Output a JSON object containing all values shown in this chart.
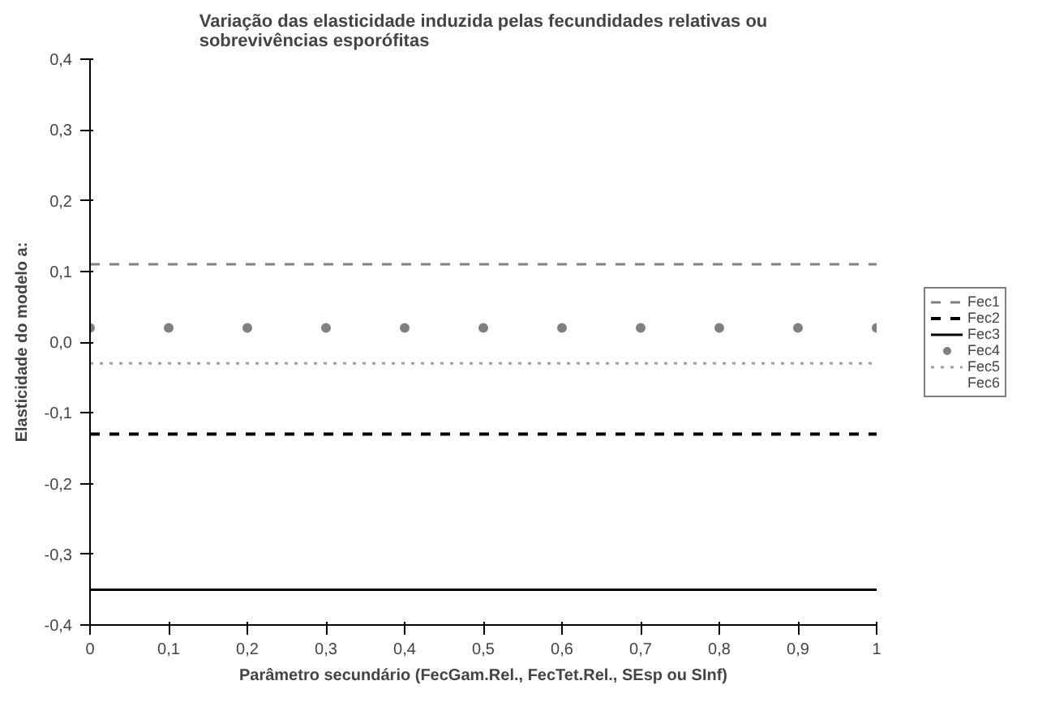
{
  "chart_data": {
    "type": "line",
    "title": "Variação das elasticidade induzida pelas fecundidades relativas ou sobrevivências esporófitas",
    "xlabel": "Parâmetro secundário (FecGam.Rel., FecTet.Rel., SEsp ou SInf)",
    "ylabel": "Elasticidade do modelo a:",
    "x": [
      0,
      0.1,
      0.2,
      0.3,
      0.4,
      0.5,
      0.6,
      0.7,
      0.8,
      0.9,
      1
    ],
    "xlim": [
      0,
      1
    ],
    "xticks": [
      {
        "value": 0,
        "label": "0"
      },
      {
        "value": 0.1,
        "label": "0,1"
      },
      {
        "value": 0.2,
        "label": "0,2"
      },
      {
        "value": 0.3,
        "label": "0,3"
      },
      {
        "value": 0.4,
        "label": "0,4"
      },
      {
        "value": 0.5,
        "label": "0,5"
      },
      {
        "value": 0.6,
        "label": "0,6"
      },
      {
        "value": 0.7,
        "label": "0,7"
      },
      {
        "value": 0.8,
        "label": "0,8"
      },
      {
        "value": 0.9,
        "label": "0,9"
      },
      {
        "value": 1,
        "label": "1"
      }
    ],
    "ylim": [
      -0.4,
      0.4
    ],
    "yticks": [
      {
        "value": -0.4,
        "label": "-0,4"
      },
      {
        "value": -0.3,
        "label": "-0,3"
      },
      {
        "value": -0.2,
        "label": "-0,2"
      },
      {
        "value": -0.1,
        "label": "-0,1"
      },
      {
        "value": 0,
        "label": "0,0"
      },
      {
        "value": 0.1,
        "label": "0,1"
      },
      {
        "value": 0.2,
        "label": "0,2"
      },
      {
        "value": 0.3,
        "label": "0,3"
      },
      {
        "value": 0.4,
        "label": "0,4"
      }
    ],
    "grid": false,
    "legend": "right",
    "series": [
      {
        "name": "Fec1",
        "color": "#808080",
        "line_style": "dashed",
        "values": [
          0.11,
          0.11,
          0.11,
          0.11,
          0.11,
          0.11,
          0.11,
          0.11,
          0.11,
          0.11,
          0.11
        ]
      },
      {
        "name": "Fec2",
        "color": "#000000",
        "line_style": "dashed",
        "values": [
          -0.13,
          -0.13,
          -0.13,
          -0.13,
          -0.13,
          -0.13,
          -0.13,
          -0.13,
          -0.13,
          -0.13,
          -0.13
        ]
      },
      {
        "name": "Fec3",
        "color": "#000000",
        "line_style": "solid",
        "values": [
          -0.35,
          -0.35,
          -0.35,
          -0.35,
          -0.35,
          -0.35,
          -0.35,
          -0.35,
          -0.35,
          -0.35,
          -0.35
        ]
      },
      {
        "name": "Fec4",
        "type": "scatter",
        "color": "#808080",
        "marker": "circle",
        "values": [
          0.02,
          0.02,
          0.02,
          0.02,
          0.02,
          0.02,
          0.02,
          0.02,
          0.02,
          0.02,
          0.02
        ]
      },
      {
        "name": "Fec5",
        "color": "#a0a0a0",
        "line_style": "dotted",
        "values": [
          -0.03,
          -0.03,
          -0.03,
          -0.03,
          -0.03,
          -0.03,
          -0.03,
          -0.03,
          -0.03,
          -0.03,
          -0.03
        ]
      },
      {
        "name": "Fec6",
        "line_style": "solid",
        "values": [
          null,
          null,
          null,
          null,
          null,
          null,
          null,
          null,
          null,
          null,
          null
        ]
      }
    ]
  }
}
